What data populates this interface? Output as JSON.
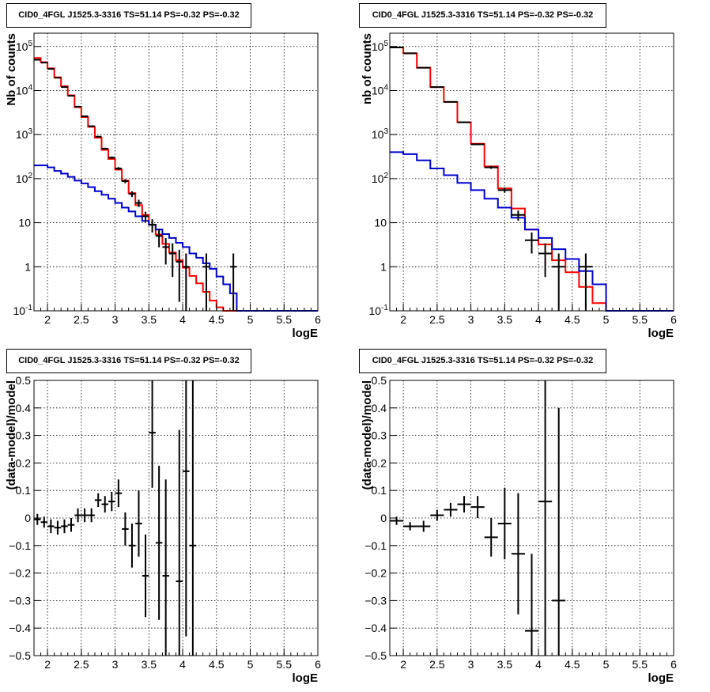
{
  "title_text": "CID0_4FGL J1525.3-3316 TS=51.14 PS=-0.32 PS=-0.32",
  "colors": {
    "model_total": "#ff0000",
    "model_background": "#0000cc",
    "data": "#000000"
  },
  "chart_data": [
    {
      "type": "line",
      "title": "CID0_4FGL J1525.3-3316 TS=51.14 PS=-0.32 PS=-0.32",
      "xlabel": "logE",
      "ylabel": "Nb of counts",
      "xlim": [
        1.8,
        6
      ],
      "ylim": [
        0.1,
        200000
      ],
      "yscale": "log",
      "grid": true,
      "xticks": [
        "2",
        "2.5",
        "3",
        "3.5",
        "4",
        "4.5",
        "5",
        "5.5",
        "6"
      ],
      "yticks": [
        "10^-1",
        "1",
        "10",
        "10^2",
        "10^3",
        "10^4",
        "10^5"
      ],
      "series": [
        {
          "style": "step",
          "color": "#ff0000",
          "edges": [
            1.8,
            1.9,
            2.0,
            2.1,
            2.2,
            2.3,
            2.4,
            2.5,
            2.6,
            2.7,
            2.8,
            2.9,
            3.0,
            3.1,
            3.2,
            3.3,
            3.4,
            3.5,
            3.6,
            3.7,
            3.8,
            3.9,
            4.0,
            4.1,
            4.2,
            4.3,
            4.4,
            4.5,
            4.6,
            4.7,
            4.8,
            4.9,
            5.0,
            5.1,
            5.2,
            5.3,
            5.4,
            5.5,
            5.6,
            5.7,
            5.8,
            5.9,
            6.0
          ],
          "values": [
            55000,
            44000,
            32000,
            20000,
            12500,
            7800,
            4200,
            2500,
            1500,
            850,
            450,
            280,
            160,
            90,
            47,
            25,
            15,
            9,
            5.4,
            3.3,
            2.1,
            1.4,
            0.95,
            0.62,
            0.42,
            0.27,
            0.17,
            0.12,
            0.1,
            0.1,
            0.1,
            0.1,
            0.1,
            0.1,
            0.1,
            0.1,
            0.1,
            0.1,
            0.1,
            0.1,
            0.1,
            0.1
          ]
        },
        {
          "style": "step",
          "color": "#0000cc",
          "edges": [
            1.8,
            1.9,
            2.0,
            2.1,
            2.2,
            2.3,
            2.4,
            2.5,
            2.6,
            2.7,
            2.8,
            2.9,
            3.0,
            3.1,
            3.2,
            3.3,
            3.4,
            3.5,
            3.6,
            3.7,
            3.8,
            3.9,
            4.0,
            4.1,
            4.2,
            4.3,
            4.4,
            4.5,
            4.6,
            4.7,
            4.8,
            4.9,
            5.0,
            5.1,
            5.2,
            5.3,
            5.4,
            5.5,
            5.6,
            5.7,
            5.8,
            5.9,
            6.0
          ],
          "values": [
            200,
            200,
            180,
            150,
            130,
            110,
            90,
            78,
            64,
            52,
            43,
            35,
            28,
            22,
            18,
            14,
            11,
            9,
            7,
            5.5,
            4.5,
            3.5,
            2.8,
            2.0,
            1.6,
            1.2,
            0.9,
            0.6,
            0.4,
            0.25,
            0.1,
            0.1,
            0.1,
            0.1,
            0.1,
            0.1,
            0.1,
            0.1,
            0.1,
            0.1,
            0.1,
            0.1
          ]
        }
      ],
      "points": [
        {
          "x": 1.85,
          "y": 50000
        },
        {
          "x": 1.95,
          "y": 43000
        },
        {
          "x": 2.05,
          "y": 31000
        },
        {
          "x": 2.15,
          "y": 19500
        },
        {
          "x": 2.25,
          "y": 12000
        },
        {
          "x": 2.35,
          "y": 7600
        },
        {
          "x": 2.45,
          "y": 4300
        },
        {
          "x": 2.55,
          "y": 2600
        },
        {
          "x": 2.65,
          "y": 1550
        },
        {
          "x": 2.75,
          "y": 900
        },
        {
          "x": 2.85,
          "y": 480
        },
        {
          "x": 2.95,
          "y": 300
        },
        {
          "x": 3.05,
          "y": 170
        },
        {
          "x": 3.15,
          "y": 88
        },
        {
          "x": 3.25,
          "y": 45
        },
        {
          "x": 3.35,
          "y": 28
        },
        {
          "x": 3.45,
          "y": 14
        },
        {
          "x": 3.55,
          "y": 9
        },
        {
          "x": 3.65,
          "y": 5
        },
        {
          "x": 3.75,
          "y": 2.8
        },
        {
          "x": 3.85,
          "y": 2
        },
        {
          "x": 3.95,
          "y": 1.3
        },
        {
          "x": 4.05,
          "y": 1
        },
        {
          "x": 4.35,
          "y": 1
        },
        {
          "x": 4.75,
          "y": 1
        }
      ]
    },
    {
      "type": "line",
      "title": "CID0_4FGL J1525.3-3316 TS=51.14 PS=-0.32 PS=-0.32",
      "xlabel": "logE",
      "ylabel": "nb of counts",
      "xlim": [
        1.8,
        6
      ],
      "ylim": [
        0.1,
        200000
      ],
      "yscale": "log",
      "grid": true,
      "xticks": [
        "2",
        "2.5",
        "3",
        "3.5",
        "4",
        "4.5",
        "5",
        "5.5",
        "6"
      ],
      "yticks": [
        "10^-1",
        "1",
        "10",
        "10^2",
        "10^3",
        "10^4",
        "10^5"
      ],
      "series": [
        {
          "style": "step",
          "color": "#ff0000",
          "edges": [
            1.8,
            2.0,
            2.2,
            2.4,
            2.6,
            2.8,
            3.0,
            3.2,
            3.4,
            3.6,
            3.8,
            4.0,
            4.2,
            4.4,
            4.6,
            4.8,
            5.0,
            5.2,
            5.4,
            5.6,
            5.8,
            6.0
          ],
          "values": [
            95000,
            70000,
            33000,
            12000,
            5500,
            1900,
            620,
            190,
            60,
            21,
            7,
            3.2,
            1.4,
            0.75,
            0.35,
            0.15,
            0.1,
            0.1,
            0.1,
            0.1,
            0.1
          ]
        },
        {
          "style": "step",
          "color": "#0000cc",
          "edges": [
            1.8,
            2.0,
            2.2,
            2.4,
            2.6,
            2.8,
            3.0,
            3.2,
            3.4,
            3.6,
            3.8,
            4.0,
            4.2,
            4.4,
            4.6,
            4.8,
            5.0,
            5.2,
            5.4,
            5.6,
            5.8,
            6.0
          ],
          "values": [
            400,
            360,
            260,
            170,
            120,
            80,
            55,
            35,
            22,
            13,
            7,
            4.5,
            2.5,
            1.5,
            0.8,
            0.4,
            0.1,
            0.1,
            0.1,
            0.1,
            0.1
          ]
        }
      ],
      "points": [
        {
          "x": 1.9,
          "y": 95000
        },
        {
          "x": 2.1,
          "y": 70000
        },
        {
          "x": 2.3,
          "y": 33000
        },
        {
          "x": 2.5,
          "y": 12000
        },
        {
          "x": 2.7,
          "y": 5500
        },
        {
          "x": 2.9,
          "y": 1900
        },
        {
          "x": 3.1,
          "y": 600
        },
        {
          "x": 3.3,
          "y": 180
        },
        {
          "x": 3.5,
          "y": 55
        },
        {
          "x": 3.7,
          "y": 15
        },
        {
          "x": 3.9,
          "y": 4
        },
        {
          "x": 4.1,
          "y": 2
        },
        {
          "x": 4.3,
          "y": 1
        },
        {
          "x": 4.7,
          "y": 1
        }
      ]
    },
    {
      "type": "scatter",
      "title": "CID0_4FGL J1525.3-3316 TS=51.14 PS=-0.32 PS=-0.32",
      "xlabel": "logE",
      "ylabel": "(data-model)/model",
      "xlim": [
        1.8,
        6
      ],
      "ylim": [
        -0.5,
        0.5
      ],
      "grid": true,
      "xticks": [
        "2",
        "2.5",
        "3",
        "3.5",
        "4",
        "4.5",
        "5",
        "5.5",
        "6"
      ],
      "yticks": [
        "−0.5",
        "−0.4",
        "−0.3",
        "−0.2",
        "−0.1",
        "0",
        "0.1",
        "0.2",
        "0.3",
        "0.4",
        "0.5"
      ],
      "points": [
        {
          "x": 1.85,
          "y": -0.005,
          "yerr": 0.02
        },
        {
          "x": 1.95,
          "y": -0.015,
          "yerr": 0.02
        },
        {
          "x": 2.05,
          "y": -0.03,
          "yerr": 0.025
        },
        {
          "x": 2.15,
          "y": -0.035,
          "yerr": 0.025
        },
        {
          "x": 2.25,
          "y": -0.03,
          "yerr": 0.025
        },
        {
          "x": 2.35,
          "y": -0.025,
          "yerr": 0.025
        },
        {
          "x": 2.45,
          "y": 0.01,
          "yerr": 0.025
        },
        {
          "x": 2.55,
          "y": 0.01,
          "yerr": 0.025
        },
        {
          "x": 2.65,
          "y": 0.01,
          "yerr": 0.025
        },
        {
          "x": 2.75,
          "y": 0.065,
          "yerr": 0.025
        },
        {
          "x": 2.85,
          "y": 0.05,
          "yerr": 0.03
        },
        {
          "x": 2.95,
          "y": 0.06,
          "yerr": 0.035
        },
        {
          "x": 3.05,
          "y": 0.09,
          "yerr": 0.05
        },
        {
          "x": 3.15,
          "y": -0.04,
          "yerr": 0.06
        },
        {
          "x": 3.25,
          "y": -0.1,
          "yerr": 0.08
        },
        {
          "x": 3.35,
          "y": -0.02,
          "yerr": 0.12
        },
        {
          "x": 3.45,
          "y": -0.21,
          "yerr": 0.15
        },
        {
          "x": 3.55,
          "y": 0.31,
          "yerr": 0.2
        },
        {
          "x": 3.65,
          "y": -0.09,
          "yerr": 0.28
        },
        {
          "x": 3.75,
          "y": -0.21,
          "yerr": 0.35
        },
        {
          "x": 3.95,
          "y": -0.23,
          "yerr": 0.55
        },
        {
          "x": 4.05,
          "y": 0.17,
          "yerr": 0.6
        },
        {
          "x": 4.15,
          "y": -0.1,
          "yerr": 0.7
        }
      ]
    },
    {
      "type": "scatter",
      "title": "CID0_4FGL J1525.3-3316 TS=51.14 PS=-0.32 PS=-0.32",
      "xlabel": "logE",
      "ylabel": "(data-model)/model",
      "xlim": [
        1.8,
        6
      ],
      "ylim": [
        -0.5,
        0.5
      ],
      "grid": true,
      "xticks": [
        "2",
        "2.5",
        "3",
        "3.5",
        "4",
        "4.5",
        "5",
        "5.5",
        "6"
      ],
      "yticks": [
        "−0.5",
        "−0.4",
        "−0.3",
        "−0.2",
        "−0.1",
        "0",
        "0.1",
        "0.2",
        "0.3",
        "0.4",
        "0.5"
      ],
      "points": [
        {
          "x": 1.9,
          "y": -0.01,
          "yerr": 0.015
        },
        {
          "x": 2.1,
          "y": -0.03,
          "yerr": 0.015
        },
        {
          "x": 2.3,
          "y": -0.03,
          "yerr": 0.02
        },
        {
          "x": 2.5,
          "y": 0.01,
          "yerr": 0.02
        },
        {
          "x": 2.7,
          "y": 0.03,
          "yerr": 0.025
        },
        {
          "x": 2.9,
          "y": 0.05,
          "yerr": 0.03
        },
        {
          "x": 3.1,
          "y": 0.04,
          "yerr": 0.04
        },
        {
          "x": 3.3,
          "y": -0.07,
          "yerr": 0.07
        },
        {
          "x": 3.5,
          "y": -0.02,
          "yerr": 0.13
        },
        {
          "x": 3.7,
          "y": -0.13,
          "yerr": 0.22
        },
        {
          "x": 3.9,
          "y": -0.41,
          "yerr": 0.28
        },
        {
          "x": 4.1,
          "y": 0.06,
          "yerr": 0.6
        },
        {
          "x": 4.3,
          "y": -0.3,
          "yerr": 0.7
        }
      ]
    }
  ]
}
